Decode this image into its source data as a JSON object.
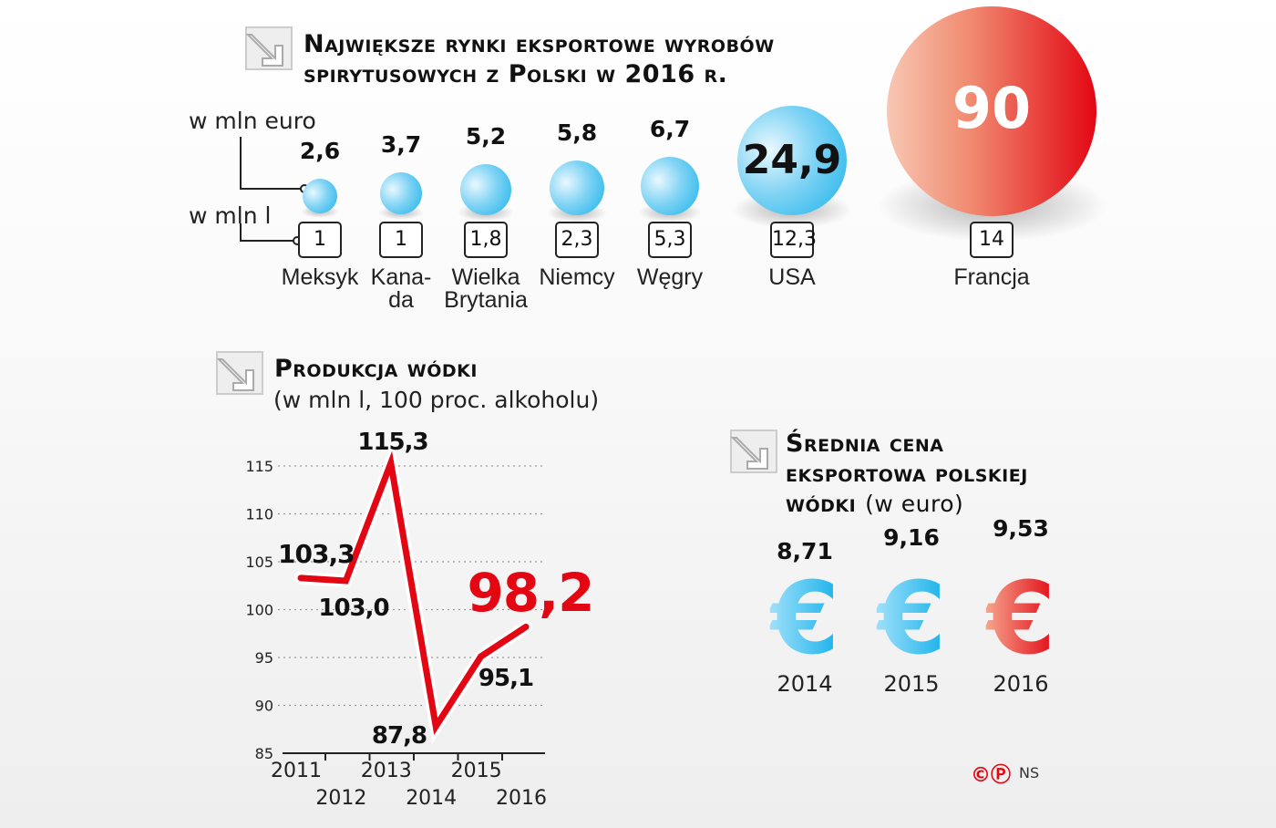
{
  "section1": {
    "title_line1": "Największe rynki eksportowe wyrobów",
    "title_line2": "spirytusowych z Polski w 2016 r.",
    "unit_value": "w mln euro",
    "unit_volume": "w mln l",
    "markets": [
      {
        "country": "Meksyk",
        "value_eur": "2,6",
        "volume_l": "1"
      },
      {
        "country": "Kana-\nda",
        "value_eur": "3,7",
        "volume_l": "1"
      },
      {
        "country": "Wielka\nBrytania",
        "value_eur": "5,2",
        "volume_l": "1,8"
      },
      {
        "country": "Niemcy",
        "value_eur": "5,8",
        "volume_l": "2,3"
      },
      {
        "country": "Węgry",
        "value_eur": "6,7",
        "volume_l": "5,3"
      },
      {
        "country": "USA",
        "value_eur": "24,9",
        "volume_l": "12,3"
      },
      {
        "country": "Francja",
        "value_eur": "90",
        "volume_l": "14"
      }
    ]
  },
  "section2": {
    "title": "Produkcja wódki",
    "subtitle": "(w mln l, 100 proc. alkoholu)"
  },
  "section3": {
    "title_line1": "Średnia cena",
    "title_line2": "eksportowa polskiej",
    "title_line3": "wódki",
    "title_unit": "(w euro)",
    "prices": [
      {
        "year": "2014",
        "value": "8,71",
        "symbol": "€"
      },
      {
        "year": "2015",
        "value": "9,16",
        "symbol": "€"
      },
      {
        "year": "2016",
        "value": "9,53",
        "symbol": "€"
      }
    ]
  },
  "footer": {
    "credit": "NS",
    "copyright_symbol": "©",
    "p_symbol": "Ⓟ"
  },
  "colors": {
    "accent_red": "#e30613",
    "accent_blue": "#17b1ea"
  },
  "chart_data": {
    "type": "line",
    "title": "Produkcja wódki",
    "ylabel": "w mln l, 100 proc. alkoholu",
    "x": [
      "2011",
      "2012",
      "2013",
      "2014",
      "2015",
      "2016"
    ],
    "values": [
      103.3,
      103.0,
      115.3,
      87.8,
      95.1,
      98.2
    ],
    "labels": [
      "103,3",
      "103,0",
      "115,3",
      "87,8",
      "95,1",
      "98,2"
    ],
    "ylim": [
      85,
      115
    ],
    "yticks": [
      "85",
      "90",
      "95",
      "100",
      "105",
      "110",
      "115"
    ],
    "grid": true
  }
}
